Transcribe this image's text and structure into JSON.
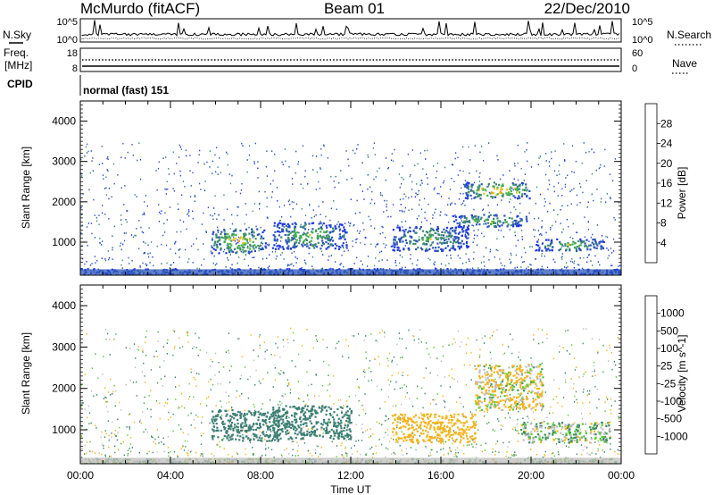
{
  "header": {
    "station": "McMurdo (fitACF)",
    "beam": "Beam 01",
    "date": "22/Dec/2010"
  },
  "status_panels": {
    "nsky_label": "N.Sky",
    "nsearch_label": "N.Search",
    "nsky_ticks": [
      "10^5",
      "10^0"
    ],
    "nsearch_ticks": [
      "10^5",
      "10^0"
    ],
    "freq_label_top": "Freq.",
    "freq_label_unit": "[MHz]",
    "freq_ticks": [
      "18",
      "8"
    ],
    "nave_label": "Nave",
    "nave_ticks": [
      "60",
      "0"
    ],
    "cpid_label": "CPID",
    "cpid_value": "normal (fast) 151"
  },
  "chart_data": [
    {
      "type": "heatmap",
      "name": "power",
      "ylabel": "Slant Range [km]",
      "ylim": [
        180,
        4500
      ],
      "yticks": [
        "1000",
        "2000",
        "3000",
        "4000"
      ],
      "xlim": [
        0,
        24
      ],
      "colorbar_label": "Power [dB]",
      "colorbar_ticks": [
        "4",
        "8",
        "12",
        "16",
        "20",
        "24",
        "28"
      ],
      "colorbar_colors": [
        "#1f35e6",
        "#2c56b8",
        "#3d8c6e",
        "#43b04a",
        "#e3c42a",
        "#f39a1c",
        "#ee5b16",
        "#e01b12"
      ],
      "features": [
        {
          "x": [
            0,
            24
          ],
          "y": [
            180,
            360
          ],
          "level": 6
        },
        {
          "x": [
            5.8,
            8.2
          ],
          "y": [
            750,
            1350
          ],
          "level": 18
        },
        {
          "x": [
            8.5,
            11.8
          ],
          "y": [
            850,
            1500
          ],
          "level": 14
        },
        {
          "x": [
            13.8,
            17.2
          ],
          "y": [
            800,
            1400
          ],
          "level": 12
        },
        {
          "x": [
            16.5,
            19.8
          ],
          "y": [
            1400,
            1700
          ],
          "level": 14
        },
        {
          "x": [
            17.0,
            20.0
          ],
          "y": [
            2100,
            2500
          ],
          "level": 20
        },
        {
          "x": [
            20.2,
            23.2
          ],
          "y": [
            800,
            1100
          ],
          "level": 14
        }
      ]
    },
    {
      "type": "heatmap",
      "name": "velocity",
      "ylabel": "Slant Range [km]",
      "ylim": [
        180,
        4500
      ],
      "yticks": [
        "1000",
        "2000",
        "3000",
        "4000"
      ],
      "xlim": [
        0,
        24
      ],
      "xticks": [
        "00:00",
        "04:00",
        "08:00",
        "12:00",
        "16:00",
        "20:00",
        "00:00"
      ],
      "xlabel": "Time UT",
      "colorbar_label": "Velocity [m s^-1]",
      "colorbar_ticks": [
        "1000",
        "500",
        "100",
        "25",
        "-25",
        "-100",
        "-500",
        "-1000"
      ],
      "colorbar_colors": [
        "#2f4fb4",
        "#3d7f74",
        "#3d9c52",
        "#55cc2d",
        "#bdbdbd",
        "#f3b41c",
        "#f07f10",
        "#e84812",
        "#e01b12"
      ],
      "features": [
        {
          "x": [
            0,
            24
          ],
          "y": [
            180,
            320
          ],
          "velocity": 0
        },
        {
          "x": [
            5.8,
            8.8
          ],
          "y": [
            750,
            1500
          ],
          "velocity": 300
        },
        {
          "x": [
            8.5,
            12.0
          ],
          "y": [
            800,
            1600
          ],
          "velocity": 300
        },
        {
          "x": [
            13.8,
            17.5
          ],
          "y": [
            700,
            1400
          ],
          "velocity": -300
        },
        {
          "x": [
            17.5,
            20.5
          ],
          "y": [
            1500,
            2600
          ],
          "velocity": -100
        },
        {
          "x": [
            19.5,
            23.5
          ],
          "y": [
            700,
            1200
          ],
          "velocity": 0
        }
      ]
    }
  ]
}
